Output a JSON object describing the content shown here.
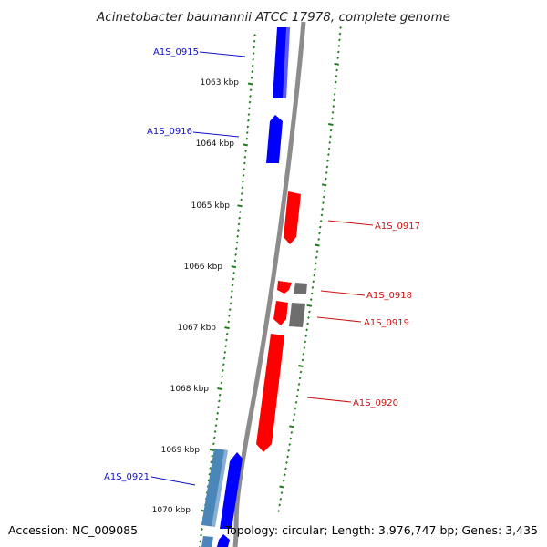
{
  "title": "Acinetobacter baumannii ATCC 17978, complete genome",
  "footer": {
    "accession": "Accession: NC_009085",
    "summary": "Topology: circular; Length: 3,976,747 bp; Genes: 3,435"
  },
  "colors": {
    "forward_gene": "#0000ff",
    "reverse_gene": "#ff0000",
    "gray_feature": "#6e6e6e",
    "steel_feature": "#4a86b8",
    "backbone": "#8c8c8c",
    "tick": "#1e7b1e",
    "forward_label": "#1010cc",
    "reverse_label": "#cc1010"
  },
  "ticks": [
    "1063 kbp",
    "1064 kbp",
    "1065 kbp",
    "1066 kbp",
    "1067 kbp",
    "1068 kbp",
    "1069 kbp",
    "1070 kbp"
  ],
  "genes": [
    {
      "id": "A1S_0915",
      "strand": "forward"
    },
    {
      "id": "A1S_0916",
      "strand": "forward"
    },
    {
      "id": "A1S_0917",
      "strand": "reverse"
    },
    {
      "id": "A1S_0918",
      "strand": "reverse"
    },
    {
      "id": "A1S_0919",
      "strand": "reverse"
    },
    {
      "id": "A1S_0920",
      "strand": "reverse"
    },
    {
      "id": "A1S_0921",
      "strand": "forward"
    }
  ]
}
